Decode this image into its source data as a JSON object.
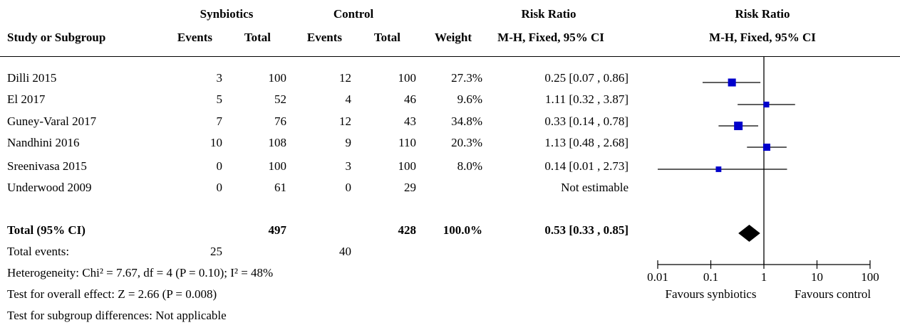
{
  "header": {
    "group1": "Synbiotics",
    "group2": "Control",
    "rr_group": "Risk Ratio",
    "rr_group_plot": "Risk Ratio",
    "study_col": "Study or Subgroup",
    "events1": "Events",
    "total1": "Total",
    "events2": "Events",
    "total2": "Total",
    "weight": "Weight",
    "method": "M-H, Fixed, 95% CI",
    "method_plot": "M-H, Fixed, 95% CI"
  },
  "studies": [
    {
      "name": "Dilli 2015",
      "e1": "3",
      "n1": "100",
      "e2": "12",
      "n2": "100",
      "weight": "27.3%",
      "ci_text": "0.25 [0.07 , 0.86]"
    },
    {
      "name": "El 2017",
      "e1": "5",
      "n1": "52",
      "e2": "4",
      "n2": "46",
      "weight": "9.6%",
      "ci_text": "1.11 [0.32 , 3.87]"
    },
    {
      "name": "Guney-Varal 2017",
      "e1": "7",
      "n1": "76",
      "e2": "12",
      "n2": "43",
      "weight": "34.8%",
      "ci_text": "0.33 [0.14 , 0.78]"
    },
    {
      "name": "Nandhini 2016",
      "e1": "10",
      "n1": "108",
      "e2": "9",
      "n2": "110",
      "weight": "20.3%",
      "ci_text": "1.13 [0.48 , 2.68]"
    },
    {
      "name": "Sreenivasa 2015",
      "e1": "0",
      "n1": "100",
      "e2": "3",
      "n2": "100",
      "weight": "8.0%",
      "ci_text": "0.14 [0.01 , 2.73]"
    },
    {
      "name": "Underwood 2009",
      "e1": "0",
      "n1": "61",
      "e2": "0",
      "n2": "29",
      "weight": "",
      "ci_text": "Not estimable"
    }
  ],
  "total": {
    "label": "Total (95% CI)",
    "n1": "497",
    "n2": "428",
    "weight": "100.0%",
    "ci_text": "0.53 [0.33 , 0.85]"
  },
  "total_events": {
    "label": "Total events:",
    "e1": "25",
    "e2": "40"
  },
  "footer": {
    "heterogeneity": "Heterogeneity: Chi² = 7.67, df = 4 (P = 0.10); I² = 48%",
    "overall": "Test for overall effect: Z = 2.66 (P = 0.008)",
    "subgroup": "Test for subgroup differences: Not applicable"
  },
  "axis": {
    "ticks": [
      "0.01",
      "0.1",
      "1",
      "10",
      "100"
    ],
    "left_label": "Favours synbiotics",
    "right_label": "Favours control"
  },
  "colors": {
    "marker": "#0000cc",
    "diamond": "#000000",
    "line": "#000000"
  },
  "chart_data": {
    "type": "forest",
    "scale": "log",
    "xlim": [
      0.01,
      100
    ],
    "null_value": 1,
    "points": [
      {
        "study": "Dilli 2015",
        "rr": 0.25,
        "lo": 0.07,
        "hi": 0.86,
        "weight": 27.3
      },
      {
        "study": "El 2017",
        "rr": 1.11,
        "lo": 0.32,
        "hi": 3.87,
        "weight": 9.6
      },
      {
        "study": "Guney-Varal 2017",
        "rr": 0.33,
        "lo": 0.14,
        "hi": 0.78,
        "weight": 34.8
      },
      {
        "study": "Nandhini 2016",
        "rr": 1.13,
        "lo": 0.48,
        "hi": 2.68,
        "weight": 20.3
      },
      {
        "study": "Sreenivasa 2015",
        "rr": 0.14,
        "lo": 0.01,
        "hi": 2.73,
        "weight": 8.0
      },
      {
        "study": "Underwood 2009",
        "rr": null,
        "lo": null,
        "hi": null,
        "weight": null
      }
    ],
    "pooled": {
      "rr": 0.53,
      "lo": 0.33,
      "hi": 0.85
    }
  }
}
